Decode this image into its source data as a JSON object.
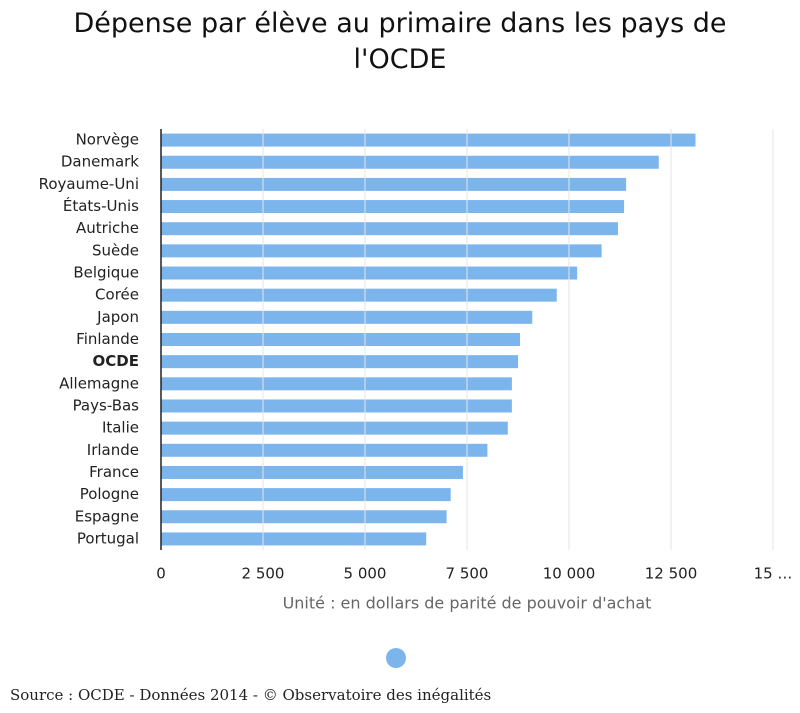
{
  "chart_data": {
    "type": "barh",
    "title": "Dépense par élève au primaire dans les pays de l'OCDE",
    "categories": [
      "Norvège",
      "Danemark",
      "Royaume-Uni",
      "États-Unis",
      "Autriche",
      "Suède",
      "Belgique",
      "Corée",
      "Japon",
      "Finlande",
      "OCDE",
      "Allemagne",
      "Pays-Bas",
      "Italie",
      "Irlande",
      "France",
      "Pologne",
      "Espagne",
      "Portugal"
    ],
    "values": [
      13100,
      12200,
      11400,
      11350,
      11200,
      10800,
      10200,
      9700,
      9100,
      8800,
      8750,
      8600,
      8600,
      8500,
      8000,
      7400,
      7100,
      7000,
      6500
    ],
    "color": "#7cb5ec",
    "highlight_index": 10,
    "xlim": [
      0,
      15000
    ],
    "xticks": [
      0,
      {
        "value": 2500,
        "label": "2 500"
      },
      {
        "value": 5000,
        "label": "5 000"
      },
      {
        "value": 7500,
        "label": "7 500"
      },
      {
        "value": 10000,
        "label": "10 000"
      },
      {
        "value": 12500,
        "label": "12 500"
      },
      {
        "value": 15000,
        "label": "15 …"
      }
    ],
    "xlabel": "Unité : en dollars de parité de pouvoir d'achat",
    "grid": true,
    "source": "Source : OCDE - Données 2014 - © Observatoire des inégalités"
  }
}
